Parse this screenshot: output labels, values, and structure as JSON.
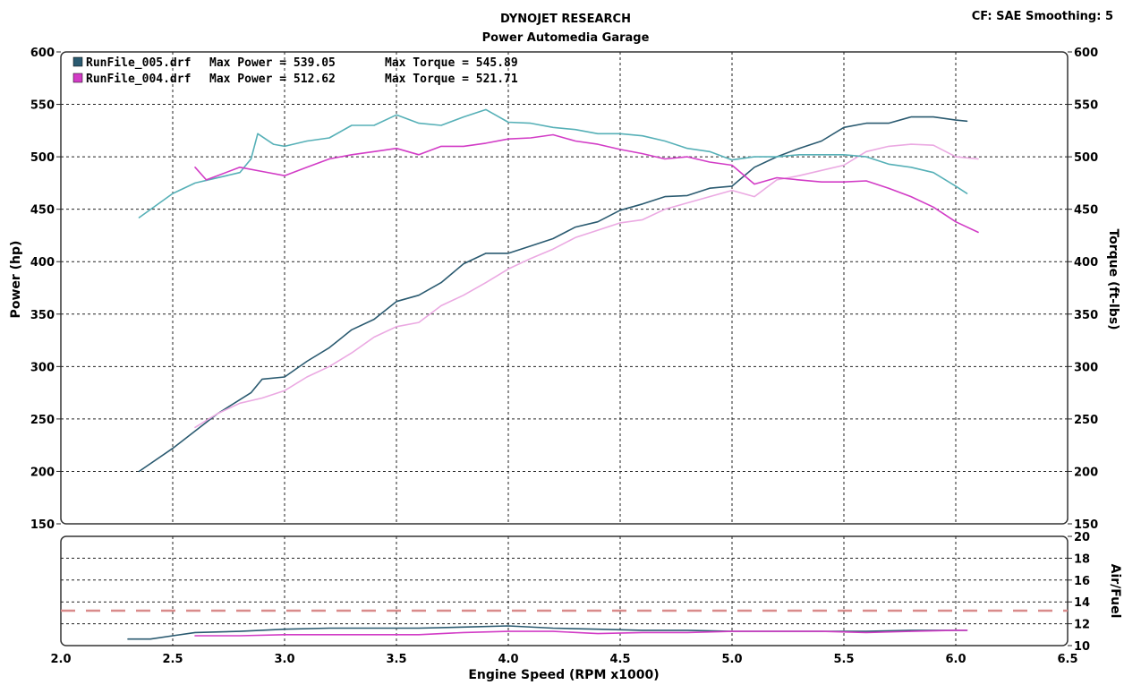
{
  "header": {
    "title": "DYNOJET RESEARCH",
    "subtitle": "Power Automedia Garage",
    "correction": "CF: SAE  Smoothing: 5"
  },
  "chart_data": [
    {
      "type": "line",
      "xlabel": "Engine Speed (RPM x1000)",
      "ylabel": "Power (hp)",
      "ylabel_right": "Torque (ft-lbs)",
      "xlim": [
        2.0,
        6.5
      ],
      "ylim": [
        150,
        600
      ],
      "x_ticks": [
        "2.0",
        "2.5",
        "3.0",
        "3.5",
        "4.0",
        "4.5",
        "5.0",
        "5.5",
        "6.0",
        "6.5"
      ],
      "y_ticks": [
        "150",
        "200",
        "250",
        "300",
        "350",
        "400",
        "450",
        "500",
        "550",
        "600"
      ],
      "grid": true,
      "legend_position": "top-left",
      "legend": [
        {
          "file": "RunFile_005.drf",
          "power_text": "Max Power = 539.05",
          "torque_text": "Max Torque = 545.89",
          "color": "#2a5a70"
        },
        {
          "file": "RunFile_004.drf",
          "power_text": "Max Power = 512.62",
          "torque_text": "Max Torque = 521.71",
          "color": "#d23cc6"
        }
      ],
      "series": [
        {
          "run": "RunFile_005",
          "quantity": "power",
          "color": "#2a5a70",
          "x": [
            2.35,
            2.5,
            2.7,
            2.85,
            2.9,
            3.0,
            3.1,
            3.2,
            3.3,
            3.4,
            3.5,
            3.6,
            3.7,
            3.8,
            3.9,
            4.0,
            4.1,
            4.2,
            4.3,
            4.4,
            4.5,
            4.6,
            4.7,
            4.8,
            4.9,
            5.0,
            5.1,
            5.2,
            5.3,
            5.4,
            5.5,
            5.6,
            5.7,
            5.8,
            5.9,
            6.0,
            6.05
          ],
          "y": [
            200,
            222,
            255,
            275,
            288,
            290,
            305,
            318,
            335,
            345,
            362,
            368,
            380,
            398,
            408,
            408,
            415,
            422,
            433,
            438,
            449,
            455,
            462,
            463,
            470,
            472,
            490,
            500,
            508,
            515,
            528,
            532,
            532,
            538,
            538,
            535,
            534
          ]
        },
        {
          "run": "RunFile_004",
          "quantity": "power",
          "color": "#eba9e2",
          "x": [
            2.6,
            2.7,
            2.8,
            2.9,
            3.0,
            3.1,
            3.2,
            3.3,
            3.4,
            3.5,
            3.6,
            3.7,
            3.8,
            3.9,
            4.0,
            4.1,
            4.2,
            4.3,
            4.4,
            4.5,
            4.6,
            4.7,
            4.8,
            4.9,
            5.0,
            5.1,
            5.2,
            5.3,
            5.4,
            5.5,
            5.6,
            5.7,
            5.8,
            5.9,
            6.0,
            6.1
          ],
          "y": [
            242,
            255,
            265,
            270,
            277,
            290,
            300,
            313,
            328,
            338,
            342,
            358,
            368,
            380,
            393,
            403,
            412,
            423,
            430,
            437,
            440,
            450,
            456,
            462,
            468,
            462,
            478,
            482,
            487,
            492,
            505,
            510,
            512,
            511,
            500,
            498
          ]
        },
        {
          "run": "RunFile_005",
          "quantity": "torque",
          "color": "#56b0b7",
          "x": [
            2.35,
            2.5,
            2.6,
            2.8,
            2.85,
            2.88,
            2.95,
            3.0,
            3.1,
            3.2,
            3.3,
            3.4,
            3.5,
            3.6,
            3.7,
            3.8,
            3.9,
            4.0,
            4.1,
            4.2,
            4.3,
            4.4,
            4.5,
            4.6,
            4.7,
            4.8,
            4.9,
            5.0,
            5.1,
            5.2,
            5.3,
            5.4,
            5.5,
            5.6,
            5.7,
            5.8,
            5.9,
            6.0,
            6.05
          ],
          "y": [
            442,
            465,
            475,
            485,
            498,
            522,
            512,
            510,
            515,
            518,
            530,
            530,
            540,
            532,
            530,
            538,
            545,
            533,
            532,
            528,
            526,
            522,
            522,
            520,
            515,
            508,
            505,
            497,
            500,
            500,
            502,
            502,
            502,
            500,
            493,
            490,
            485,
            472,
            465
          ]
        },
        {
          "run": "RunFile_004",
          "quantity": "torque",
          "color": "#d23cc6",
          "x": [
            2.6,
            2.65,
            2.7,
            2.8,
            2.9,
            3.0,
            3.1,
            3.2,
            3.3,
            3.4,
            3.5,
            3.6,
            3.7,
            3.8,
            3.9,
            4.0,
            4.1,
            4.2,
            4.3,
            4.4,
            4.5,
            4.6,
            4.7,
            4.8,
            4.9,
            5.0,
            5.1,
            5.2,
            5.3,
            5.4,
            5.5,
            5.6,
            5.7,
            5.8,
            5.9,
            6.0,
            6.1
          ],
          "y": [
            490,
            478,
            482,
            490,
            486,
            482,
            490,
            498,
            502,
            505,
            508,
            502,
            510,
            510,
            513,
            517,
            518,
            521,
            515,
            512,
            507,
            503,
            498,
            500,
            495,
            492,
            474,
            480,
            478,
            476,
            476,
            477,
            470,
            462,
            452,
            438,
            428
          ]
        }
      ]
    },
    {
      "type": "line",
      "ylabel": "Air/Fuel",
      "xlim": [
        2.0,
        6.5
      ],
      "ylim": [
        10,
        20
      ],
      "y_ticks": [
        "10",
        "12",
        "14",
        "16",
        "18",
        "20"
      ],
      "reference_line": 13.2,
      "grid": true,
      "series": [
        {
          "run": "RunFile_005",
          "color": "#2a5a70",
          "x": [
            2.3,
            2.4,
            2.5,
            2.6,
            2.8,
            3.0,
            3.2,
            3.4,
            3.6,
            3.8,
            4.0,
            4.2,
            4.4,
            4.6,
            4.8,
            5.0,
            5.2,
            5.4,
            5.6,
            5.8,
            6.0,
            6.05
          ],
          "y": [
            10.6,
            10.6,
            10.9,
            11.2,
            11.3,
            11.5,
            11.6,
            11.6,
            11.6,
            11.7,
            11.8,
            11.6,
            11.5,
            11.4,
            11.4,
            11.3,
            11.3,
            11.3,
            11.3,
            11.4,
            11.4,
            11.4
          ]
        },
        {
          "run": "RunFile_004",
          "color": "#d23cc6",
          "x": [
            2.6,
            2.8,
            3.0,
            3.2,
            3.4,
            3.6,
            3.8,
            4.0,
            4.2,
            4.4,
            4.6,
            4.8,
            5.0,
            5.2,
            5.4,
            5.6,
            5.8,
            6.0,
            6.05
          ],
          "y": [
            10.9,
            10.9,
            11.0,
            11.0,
            11.0,
            11.0,
            11.2,
            11.3,
            11.3,
            11.1,
            11.2,
            11.2,
            11.3,
            11.3,
            11.3,
            11.2,
            11.3,
            11.4,
            11.4
          ]
        }
      ]
    }
  ]
}
